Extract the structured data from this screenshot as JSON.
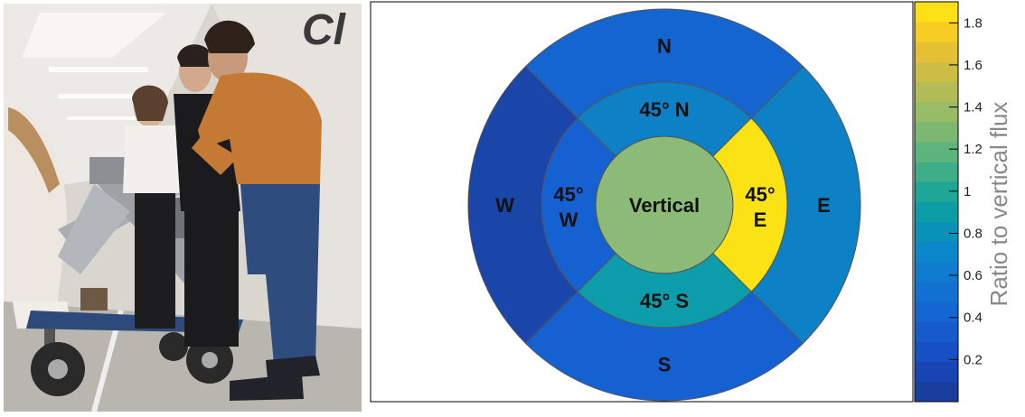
{
  "photo": {
    "subject": "students-with-detector-cart"
  },
  "chart_data": {
    "type": "heatmap",
    "layout": "polar-sector-map",
    "colorbar": {
      "label": "Ratio to vertical flux",
      "min": 0.0,
      "max": 1.9,
      "ticks": [
        "0.2",
        "0.4",
        "0.6",
        "0.8",
        "1",
        "1.2",
        "1.4",
        "1.6",
        "1.8"
      ],
      "tick_values": [
        0.2,
        0.4,
        0.6,
        0.8,
        1.0,
        1.2,
        1.4,
        1.6,
        1.8
      ],
      "color_steps": [
        "#1a3e9e",
        "#1845b3",
        "#1650c2",
        "#155bcb",
        "#1466d0",
        "#1270d1",
        "#0f7bcf",
        "#0b86c8",
        "#0a91b8",
        "#0b9ca6",
        "#1fa696",
        "#3dae88",
        "#5db47c",
        "#7cb872",
        "#98bb66",
        "#b3bd57",
        "#cdbd45",
        "#e5c034",
        "#f6cd23",
        "#fde116"
      ]
    },
    "sectors": [
      {
        "label": "Vertical",
        "ring": "center",
        "value": 1.0,
        "color": "#8bbb76"
      },
      {
        "label": "45° N",
        "ring": "inner",
        "direction": "N",
        "value": 0.7,
        "color": "#0d80c6"
      },
      {
        "label": "45° E",
        "ring": "inner",
        "direction": "E",
        "value": 1.9,
        "color": "#fbe214"
      },
      {
        "label": "45° S",
        "ring": "inner",
        "direction": "S",
        "value": 0.85,
        "color": "#0d9ca9"
      },
      {
        "label": "45° W",
        "ring": "inner",
        "direction": "W",
        "value": 0.52,
        "color": "#1661d1"
      },
      {
        "label": "N",
        "ring": "outer",
        "direction": "N",
        "value": 0.55,
        "color": "#1565d1"
      },
      {
        "label": "E",
        "ring": "outer",
        "direction": "E",
        "value": 0.7,
        "color": "#0d80c6"
      },
      {
        "label": "S",
        "ring": "outer",
        "direction": "S",
        "value": 0.52,
        "color": "#1661d1"
      },
      {
        "label": "W",
        "ring": "outer",
        "direction": "W",
        "value": 0.2,
        "color": "#1a45a9"
      }
    ]
  }
}
